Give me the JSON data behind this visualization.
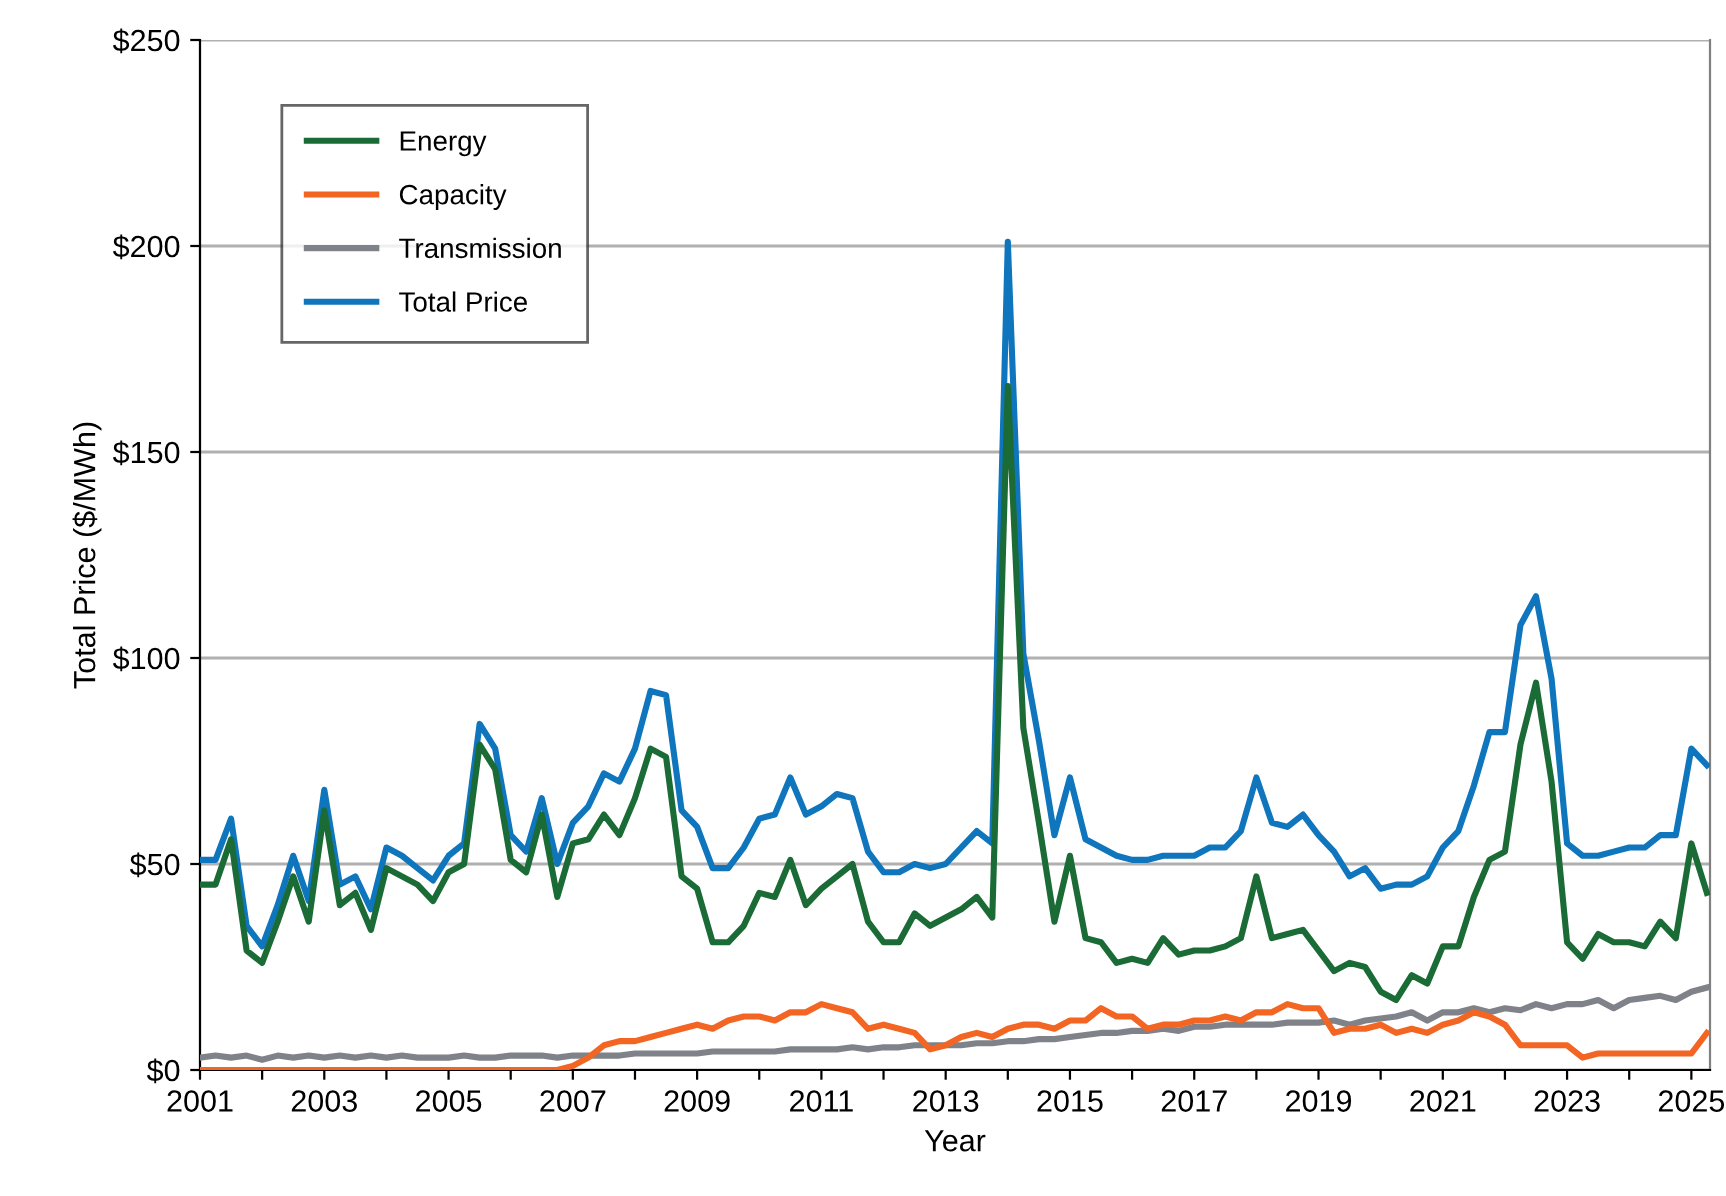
{
  "chart_data": {
    "type": "line",
    "xlabel": "Year",
    "ylabel": "Total Price ($/MWh)",
    "x": [
      2001.0,
      2001.25,
      2001.5,
      2001.75,
      2002.0,
      2002.25,
      2002.5,
      2002.75,
      2003.0,
      2003.25,
      2003.5,
      2003.75,
      2004.0,
      2004.25,
      2004.5,
      2004.75,
      2005.0,
      2005.25,
      2005.5,
      2005.75,
      2006.0,
      2006.25,
      2006.5,
      2006.75,
      2007.0,
      2007.25,
      2007.5,
      2007.75,
      2008.0,
      2008.25,
      2008.5,
      2008.75,
      2009.0,
      2009.25,
      2009.5,
      2009.75,
      2010.0,
      2010.25,
      2010.5,
      2010.75,
      2011.0,
      2011.25,
      2011.5,
      2011.75,
      2012.0,
      2012.25,
      2012.5,
      2012.75,
      2013.0,
      2013.25,
      2013.5,
      2013.75,
      2014.0,
      2014.25,
      2014.5,
      2014.75,
      2015.0,
      2015.25,
      2015.5,
      2015.75,
      2016.0,
      2016.25,
      2016.5,
      2016.75,
      2017.0,
      2017.25,
      2017.5,
      2017.75,
      2018.0,
      2018.25,
      2018.5,
      2018.75,
      2019.0,
      2019.25,
      2019.5,
      2019.75,
      2020.0,
      2020.25,
      2020.5,
      2020.75,
      2021.0,
      2021.25,
      2021.5,
      2021.75,
      2022.0,
      2022.25,
      2022.5,
      2022.75,
      2023.0,
      2023.25,
      2023.5,
      2023.75,
      2024.0,
      2024.25,
      2024.5,
      2024.75,
      2025.0,
      2025.25
    ],
    "series": [
      {
        "name": "Energy",
        "color": "#1a6b36",
        "values": [
          45,
          45,
          56,
          29,
          26,
          36,
          47,
          36,
          63,
          40,
          43,
          34,
          49,
          47,
          45,
          41,
          48,
          50,
          79,
          73,
          51,
          48,
          62,
          42,
          55,
          56,
          62,
          57,
          66,
          78,
          76,
          47,
          44,
          31,
          31,
          35,
          43,
          42,
          51,
          40,
          44,
          47,
          50,
          36,
          31,
          31,
          38,
          35,
          37,
          39,
          42,
          37,
          166,
          83,
          60,
          36,
          52,
          32,
          31,
          26,
          27,
          26,
          32,
          28,
          29,
          29,
          30,
          32,
          47,
          32,
          33,
          34,
          29,
          24,
          26,
          25,
          19,
          17,
          23,
          21,
          30,
          30,
          42,
          51,
          53,
          79,
          94,
          70,
          31,
          27,
          33,
          31,
          31,
          30,
          36,
          32,
          55,
          43
        ]
      },
      {
        "name": "Capacity",
        "color": "#f26522",
        "values": [
          0,
          0,
          0,
          0,
          0,
          0,
          0,
          0,
          0,
          0,
          0,
          0,
          0,
          0,
          0,
          0,
          0,
          0,
          0,
          0,
          0,
          0,
          0,
          0,
          1,
          3,
          6,
          7,
          7,
          8,
          9,
          10,
          11,
          10,
          12,
          13,
          13,
          12,
          14,
          14,
          16,
          15,
          14,
          10,
          11,
          10,
          9,
          5,
          6,
          8,
          9,
          8,
          10,
          11,
          11,
          10,
          12,
          12,
          15,
          13,
          13,
          10,
          11,
          11,
          12,
          12,
          13,
          12,
          14,
          14,
          16,
          15,
          15,
          9,
          10,
          10,
          11,
          9,
          10,
          9,
          11,
          12,
          14,
          13,
          11,
          6,
          6,
          6,
          6,
          3,
          4,
          4,
          4,
          4,
          4,
          4,
          4,
          9
        ]
      },
      {
        "name": "Transmission",
        "color": "#7f8289",
        "values": [
          3,
          3.5,
          3,
          3.5,
          2.5,
          3.5,
          3,
          3.5,
          3,
          3.5,
          3,
          3.5,
          3,
          3.5,
          3,
          3,
          3,
          3.5,
          3,
          3,
          3.5,
          3.5,
          3.5,
          3,
          3.5,
          3.5,
          3.5,
          3.5,
          4,
          4,
          4,
          4,
          4,
          4.5,
          4.5,
          4.5,
          4.5,
          4.5,
          5,
          5,
          5,
          5,
          5.5,
          5,
          5.5,
          5.5,
          6,
          6,
          6,
          6,
          6.5,
          6.5,
          7,
          7,
          7.5,
          7.5,
          8,
          8.5,
          9,
          9,
          9.5,
          9.5,
          10,
          9.5,
          10.5,
          10.5,
          11,
          11,
          11,
          11,
          11.5,
          11.5,
          11.5,
          12,
          11,
          12,
          12.5,
          13,
          14,
          12,
          14,
          14,
          15,
          14,
          15,
          14.5,
          16,
          15,
          16,
          16,
          17,
          15,
          17,
          17.5,
          18,
          17,
          19,
          20
        ]
      },
      {
        "name": "Total Price",
        "color": "#0f75bc",
        "values": [
          51,
          51,
          61,
          35,
          30,
          40,
          52,
          41,
          68,
          45,
          47,
          39,
          54,
          52,
          49,
          46,
          52,
          55,
          84,
          78,
          57,
          53,
          66,
          50,
          60,
          64,
          72,
          70,
          78,
          92,
          91,
          63,
          59,
          49,
          49,
          54,
          61,
          62,
          71,
          62,
          64,
          67,
          66,
          53,
          48,
          48,
          50,
          49,
          50,
          54,
          58,
          55,
          201,
          101,
          80,
          57,
          71,
          56,
          54,
          52,
          51,
          51,
          52,
          52,
          52,
          54,
          54,
          58,
          71,
          60,
          59,
          62,
          57,
          53,
          47,
          49,
          44,
          45,
          45,
          47,
          54,
          58,
          69,
          82,
          82,
          108,
          115,
          95,
          55,
          52,
          52,
          53,
          54,
          54,
          57,
          57,
          78,
          74
        ]
      }
    ],
    "xlim": [
      2001,
      2025.3
    ],
    "xticks": [
      2001,
      {
        "value": 2002,
        "label": null
      },
      2003,
      {
        "value": 2004,
        "label": null
      },
      2005,
      {
        "value": 2006,
        "label": null
      },
      2007,
      {
        "value": 2008,
        "label": null
      },
      2009,
      {
        "value": 2010,
        "label": null
      },
      2011,
      {
        "value": 2012,
        "label": null
      },
      2013,
      {
        "value": 2014,
        "label": null
      },
      2015,
      {
        "value": 2016,
        "label": null
      },
      2017,
      {
        "value": 2018,
        "label": null
      },
      2019,
      {
        "value": 2020,
        "label": null
      },
      2021,
      {
        "value": 2022,
        "label": null
      },
      2023,
      {
        "value": 2024,
        "label": null
      },
      2025
    ],
    "ylim": [
      0,
      250
    ],
    "yticks": [
      {
        "value": 0,
        "label": "$0"
      },
      {
        "value": 50,
        "label": "$50"
      },
      {
        "value": 100,
        "label": "$100"
      },
      {
        "value": 150,
        "label": "$150"
      },
      {
        "value": 200,
        "label": "$200"
      },
      {
        "value": 250,
        "label": "$250"
      }
    ],
    "grid": "y",
    "legend": "top left",
    "marker": "none",
    "line_style": "solid"
  }
}
